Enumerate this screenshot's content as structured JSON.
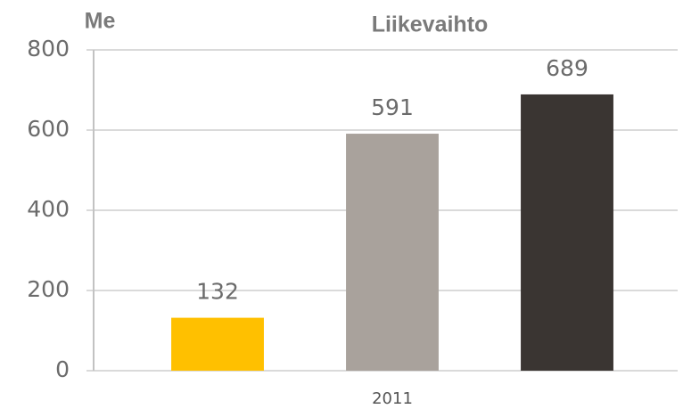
{
  "chart_data": {
    "type": "bar",
    "title": "Liikevaihto",
    "y_label": "Me",
    "categories": [
      null,
      "2011",
      null
    ],
    "values": [
      132,
      591,
      689
    ],
    "colors": [
      "#ffc000",
      "#a9a29c",
      "#3a3532"
    ],
    "ylim": [
      0,
      800
    ],
    "yticks": [
      0,
      200,
      400,
      600,
      800
    ],
    "grid": true
  }
}
